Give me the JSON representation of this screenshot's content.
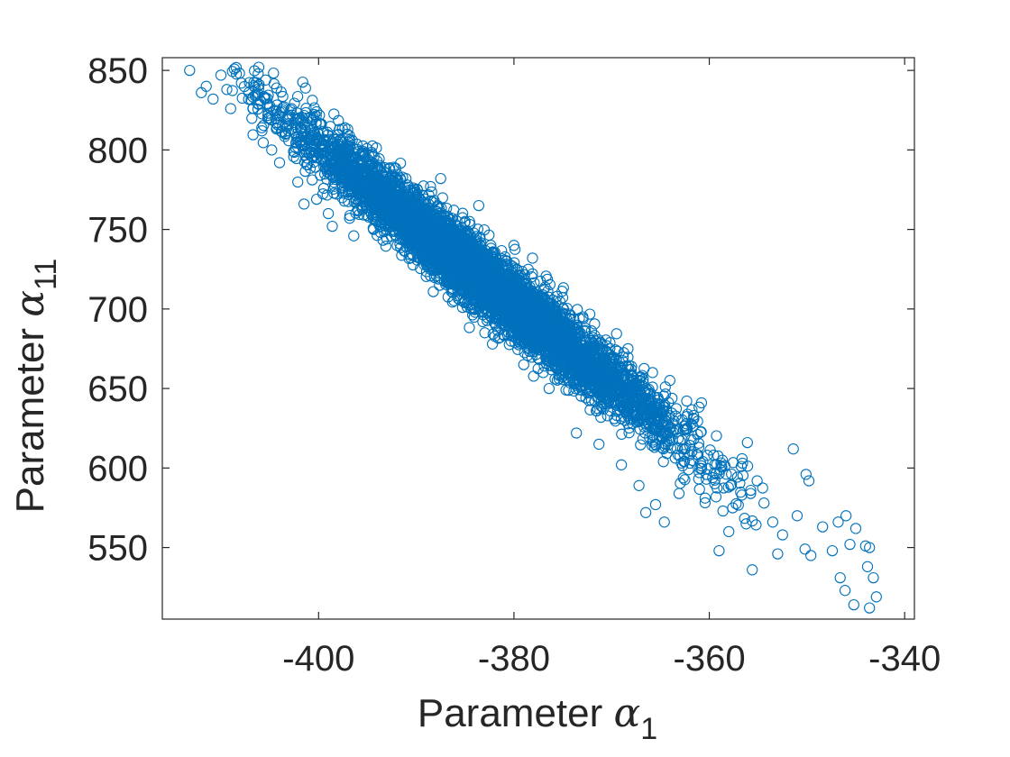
{
  "chart_data": {
    "type": "scatter",
    "title": "",
    "xlabel": {
      "prefix": "Parameter ",
      "symbol": "α",
      "subscript": "1"
    },
    "ylabel": {
      "prefix": "Parameter ",
      "symbol": "α",
      "subscript": "11"
    },
    "xlim": [
      -416,
      -339
    ],
    "ylim": [
      505,
      858
    ],
    "xticks": [
      -400,
      -380,
      -360,
      -340
    ],
    "xtick_labels": [
      "-400",
      "-380",
      "-360",
      "-340"
    ],
    "yticks": [
      550,
      600,
      650,
      700,
      750,
      800,
      850
    ],
    "ytick_labels": [
      "550",
      "600",
      "650",
      "700",
      "750",
      "800",
      "850"
    ],
    "grid": false,
    "marker": "circle-open",
    "color": "#0072BD",
    "series": [
      {
        "name": "",
        "sample_count": 6000,
        "mean": [
          -383,
          718
        ],
        "std": [
          9.5,
          48
        ],
        "correlation": -0.975,
        "points": [
          [
            -413.2,
            850
          ],
          [
            -411.5,
            840
          ],
          [
            -410.0,
            847
          ],
          [
            -409.4,
            838
          ],
          [
            -407.9,
            842
          ],
          [
            -409.0,
            826
          ],
          [
            -406.5,
            834
          ],
          [
            -410.8,
            832
          ],
          [
            -412.0,
            836
          ],
          [
            -405.8,
            812
          ],
          [
            -404.8,
            800
          ],
          [
            -404.0,
            792
          ],
          [
            -401.5,
            766
          ],
          [
            -400.2,
            769
          ],
          [
            -399.0,
            760
          ],
          [
            -398.6,
            752
          ],
          [
            -396.4,
            746
          ],
          [
            -393.0,
            744
          ],
          [
            -391.0,
            760
          ],
          [
            -387.5,
            782
          ],
          [
            -385.0,
            755
          ],
          [
            -383.6,
            765
          ],
          [
            -380.0,
            740
          ],
          [
            -378.1,
            732
          ],
          [
            -382.2,
            678
          ],
          [
            -379.0,
            665
          ],
          [
            -377.0,
            660
          ],
          [
            -376.4,
            650
          ],
          [
            -373.6,
            622
          ],
          [
            -371.3,
            615
          ],
          [
            -369.0,
            602
          ],
          [
            -367.2,
            589
          ],
          [
            -365.5,
            577
          ],
          [
            -364.6,
            566
          ],
          [
            -363.1,
            584
          ],
          [
            -362.0,
            603
          ],
          [
            -361.6,
            618
          ],
          [
            -360.2,
            608
          ],
          [
            -359.5,
            597
          ],
          [
            -358.6,
            573
          ],
          [
            -357.8,
            589
          ],
          [
            -356.6,
            603
          ],
          [
            -356.1,
            616
          ],
          [
            -355.1,
            592
          ],
          [
            -354.4,
            578
          ],
          [
            -353.5,
            566
          ],
          [
            -352.5,
            558
          ],
          [
            -351.4,
            612
          ],
          [
            -350.1,
            596
          ],
          [
            -349.8,
            592
          ],
          [
            -351.0,
            570
          ],
          [
            -350.2,
            549
          ],
          [
            -349.6,
            545
          ],
          [
            -348.4,
            563
          ],
          [
            -347.4,
            548
          ],
          [
            -346.8,
            566
          ],
          [
            -346.0,
            570
          ],
          [
            -345.6,
            552
          ],
          [
            -345.0,
            562
          ],
          [
            -344.0,
            551
          ],
          [
            -343.8,
            538
          ],
          [
            -343.2,
            531
          ],
          [
            -342.9,
            519
          ],
          [
            -343.6,
            512
          ],
          [
            -345.2,
            514
          ],
          [
            -346.1,
            523
          ],
          [
            -346.6,
            531
          ],
          [
            -343.6,
            550
          ],
          [
            -359.0,
            548
          ],
          [
            -355.6,
            536
          ],
          [
            -353.0,
            546
          ],
          [
            -358.0,
            560
          ],
          [
            -361.6,
            633
          ],
          [
            -363.0,
            617
          ],
          [
            -360.8,
            641
          ],
          [
            -364.5,
            651
          ],
          [
            -366.5,
            572
          ],
          [
            -357.6,
            575
          ]
        ]
      }
    ]
  }
}
